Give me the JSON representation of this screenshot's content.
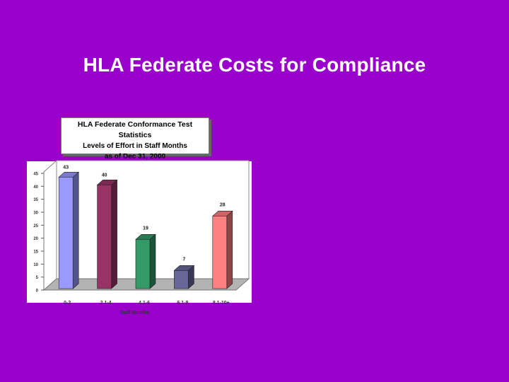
{
  "slide": {
    "title": "HLA Federate Costs for Compliance"
  },
  "chart_data": {
    "type": "bar",
    "title": "HLA Federate Conformance Test Statistics",
    "subtitle_lines": [
      "Levels of Effort in Staff Months",
      "as of Dec 31, 2000"
    ],
    "xlabel": "Staff Months",
    "ylabel": "",
    "categories": [
      "0-2",
      "2.1-4",
      "4.1-6",
      "6.1-8",
      "8.1-10+"
    ],
    "values": [
      43,
      40,
      19,
      7,
      28
    ],
    "data_labels": [
      "43",
      "40",
      "19",
      "7",
      "28"
    ],
    "ylim": [
      0,
      45
    ],
    "yticks": [
      0,
      5,
      10,
      15,
      20,
      25,
      30,
      35,
      40,
      45
    ],
    "bar_colors": [
      "#9999ff",
      "#993366",
      "#339966",
      "#666699",
      "#ff8080"
    ],
    "grid": false,
    "legend": "none",
    "style": "3d-column"
  }
}
